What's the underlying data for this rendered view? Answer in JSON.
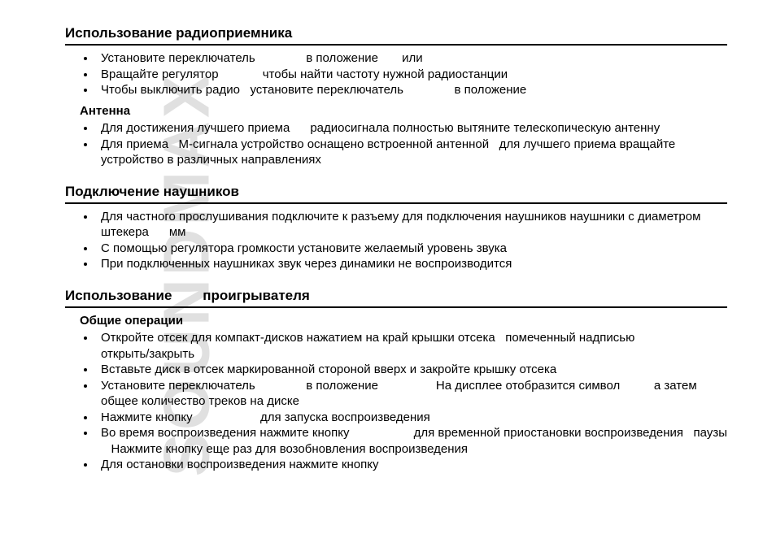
{
  "watermark": "SOUNDMAX",
  "section1": {
    "title": "Использование радиоприемника",
    "items": [
      "Установите переключатель               в положение       или",
      "Вращайте регулятор             чтобы найти частоту нужной радиостанции",
      "Чтобы выключить радио   установите переключатель               в положение"
    ],
    "subheader": "Антенна",
    "subitems": [
      "Для достижения лучшего приема      радиосигнала полностью вытяните телескопическую антенну",
      "Для приема   М-сигнала устройство оснащено встроенной антенной   для лучшего приема вращайте устройство в различных направлениях"
    ]
  },
  "section2": {
    "title": "Подключение наушников",
    "items": [
      "Для частного прослушивания подключите к разъему для подключения наушников наушники с диаметром штекера      мм",
      "С помощью регулятора громкости установите желаемый уровень звука",
      "При подключенных наушниках звук через динамики не воспроизводится"
    ]
  },
  "section3": {
    "title": "Использование        проигрывателя",
    "subheader": "Общие операции",
    "items": [
      "Откройте отсек для компакт-дисков нажатием на край крышки отсека   помеченный надписью                      открыть/закрыть",
      "Вставьте диск в отсек маркированной стороной вверх и закройте крышку отсека",
      "Установите переключатель               в положение                 На дисплее отобразится символ          а затем общее количество треков на диске",
      "Нажмите кнопку                    для запуска воспроизведения",
      "Во время воспроизведения нажмите кнопку                   для временной приостановки воспроизведения   паузы    Нажмите кнопку еще раз для возобновления воспроизведения",
      "Для остановки воспроизведения нажмите кнопку"
    ]
  }
}
